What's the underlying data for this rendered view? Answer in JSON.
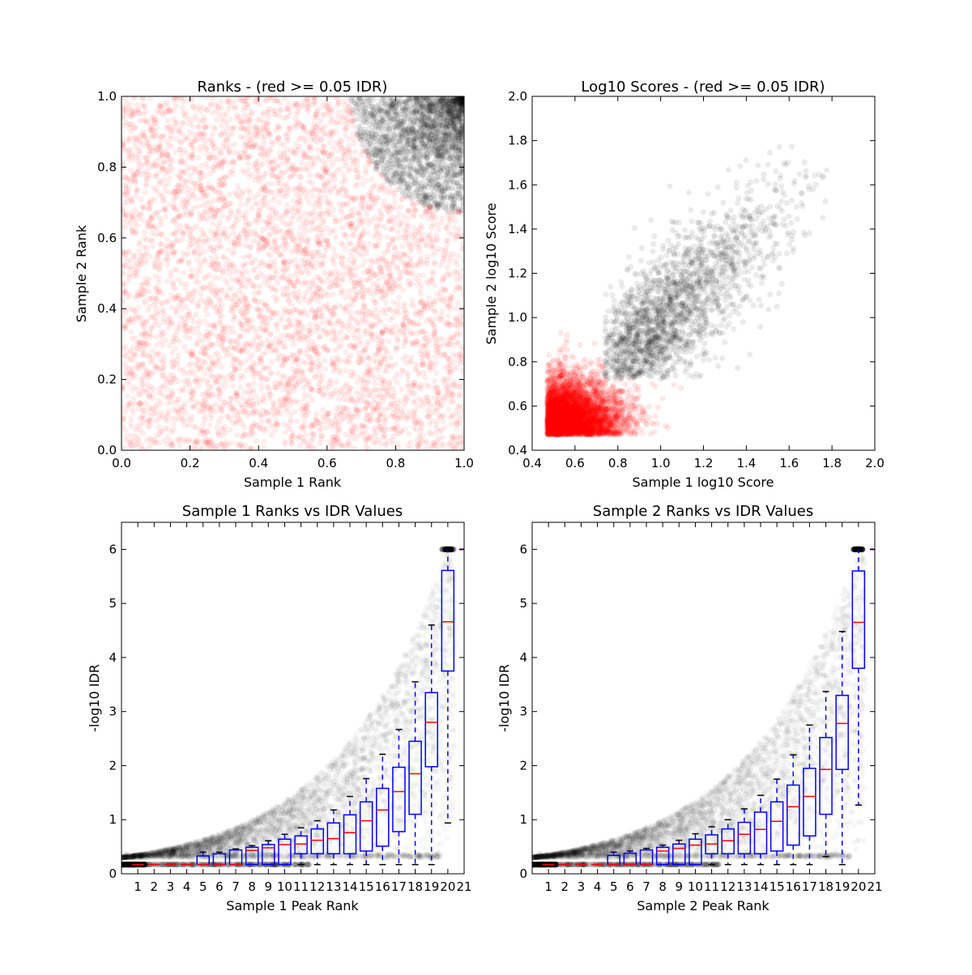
{
  "chart_data": [
    {
      "type": "scatter",
      "title": "Ranks - (red >= 0.05 IDR)",
      "xlabel": "Sample 1 Rank",
      "ylabel": "Sample 2 Rank",
      "xlim": [
        0.0,
        1.0
      ],
      "ylim": [
        0.0,
        1.0
      ],
      "xticks": [
        "0.0",
        "0.2",
        "0.4",
        "0.6",
        "0.8",
        "1.0"
      ],
      "yticks": [
        "0.0",
        "0.2",
        "0.4",
        "0.6",
        "0.8",
        "1.0"
      ],
      "colors": {
        "above_threshold": "#ff0000",
        "below_threshold": "#000000"
      }
    },
    {
      "type": "scatter",
      "title": "Log10 Scores - (red >= 0.05 IDR)",
      "xlabel": "Sample 1 log10 Score",
      "ylabel": "Sample 2 log10 Score",
      "xlim": [
        0.4,
        2.0
      ],
      "ylim": [
        0.4,
        2.0
      ],
      "xticks": [
        "0.4",
        "0.6",
        "0.8",
        "1.0",
        "1.2",
        "1.4",
        "1.6",
        "1.8",
        "2.0"
      ],
      "yticks": [
        "0.4",
        "0.6",
        "0.8",
        "1.0",
        "1.2",
        "1.4",
        "1.6",
        "1.8",
        "2.0"
      ],
      "colors": {
        "above_threshold": "#ff0000",
        "below_threshold": "#000000"
      }
    },
    {
      "type": "box",
      "title": "Sample 1 Ranks vs IDR Values",
      "xlabel": "Sample 1 Peak Rank",
      "ylabel": "-log10 IDR",
      "xlim": [
        0,
        21
      ],
      "ylim": [
        0,
        6.5
      ],
      "xticks": [
        "1",
        "2",
        "3",
        "4",
        "5",
        "6",
        "7",
        "8",
        "9",
        "10",
        "11",
        "12",
        "13",
        "14",
        "15",
        "16",
        "17",
        "18",
        "19",
        "20",
        "21"
      ],
      "yticks": [
        "0",
        "1",
        "2",
        "3",
        "4",
        "5",
        "6"
      ],
      "boxes": [
        {
          "pos": 1,
          "low": 0.17,
          "q1": 0.17,
          "med": 0.17,
          "q3": 0.17,
          "high": 0.17
        },
        {
          "pos": 2,
          "low": 0.17,
          "q1": 0.17,
          "med": 0.17,
          "q3": 0.17,
          "high": 0.17
        },
        {
          "pos": 3,
          "low": 0.17,
          "q1": 0.17,
          "med": 0.17,
          "q3": 0.17,
          "high": 0.17
        },
        {
          "pos": 4,
          "low": 0.17,
          "q1": 0.17,
          "med": 0.17,
          "q3": 0.17,
          "high": 0.17
        },
        {
          "pos": 5,
          "low": 0.17,
          "q1": 0.17,
          "med": 0.17,
          "q3": 0.33,
          "high": 0.4
        },
        {
          "pos": 6,
          "low": 0.17,
          "q1": 0.17,
          "med": 0.17,
          "q3": 0.37,
          "high": 0.4
        },
        {
          "pos": 7,
          "low": 0.17,
          "q1": 0.17,
          "med": 0.17,
          "q3": 0.44,
          "high": 0.46
        },
        {
          "pos": 8,
          "low": 0.17,
          "q1": 0.17,
          "med": 0.43,
          "q3": 0.49,
          "high": 0.52
        },
        {
          "pos": 9,
          "low": 0.17,
          "q1": 0.17,
          "med": 0.48,
          "q3": 0.54,
          "high": 0.61
        },
        {
          "pos": 10,
          "low": 0.17,
          "q1": 0.17,
          "med": 0.54,
          "q3": 0.64,
          "high": 0.73
        },
        {
          "pos": 11,
          "low": 0.17,
          "q1": 0.37,
          "med": 0.55,
          "q3": 0.7,
          "high": 0.85
        },
        {
          "pos": 12,
          "low": 0.17,
          "q1": 0.37,
          "med": 0.62,
          "q3": 0.83,
          "high": 0.98
        },
        {
          "pos": 13,
          "low": 0.17,
          "q1": 0.37,
          "med": 0.65,
          "q3": 0.94,
          "high": 1.18
        },
        {
          "pos": 14,
          "low": 0.17,
          "q1": 0.37,
          "med": 0.76,
          "q3": 1.09,
          "high": 1.43
        },
        {
          "pos": 15,
          "low": 0.17,
          "q1": 0.42,
          "med": 0.98,
          "q3": 1.33,
          "high": 1.76
        },
        {
          "pos": 16,
          "low": 0.17,
          "q1": 0.51,
          "med": 1.18,
          "q3": 1.58,
          "high": 2.21
        },
        {
          "pos": 17,
          "low": 0.17,
          "q1": 0.78,
          "med": 1.52,
          "q3": 1.97,
          "high": 2.67
        },
        {
          "pos": 18,
          "low": 0.17,
          "q1": 1.1,
          "med": 1.85,
          "q3": 2.45,
          "high": 3.55
        },
        {
          "pos": 19,
          "low": 0.17,
          "q1": 1.98,
          "med": 2.8,
          "q3": 3.35,
          "high": 4.6
        },
        {
          "pos": 20,
          "low": 0.94,
          "q1": 3.75,
          "med": 4.66,
          "q3": 5.61,
          "high": 6.0
        }
      ],
      "colors": {
        "box": "#0000ff",
        "median": "#ff0000",
        "cap": "#000000",
        "points": "#000000"
      }
    },
    {
      "type": "box",
      "title": "Sample 2 Ranks vs IDR Values",
      "xlabel": "Sample 2 Peak Rank",
      "ylabel": "-log10 IDR",
      "xlim": [
        0,
        21
      ],
      "ylim": [
        0,
        6.5
      ],
      "xticks": [
        "1",
        "2",
        "3",
        "4",
        "5",
        "6",
        "7",
        "8",
        "9",
        "10",
        "11",
        "12",
        "13",
        "14",
        "15",
        "16",
        "17",
        "18",
        "19",
        "20",
        "21"
      ],
      "yticks": [
        "0",
        "1",
        "2",
        "3",
        "4",
        "5",
        "6"
      ],
      "boxes": [
        {
          "pos": 1,
          "low": 0.17,
          "q1": 0.17,
          "med": 0.17,
          "q3": 0.17,
          "high": 0.17
        },
        {
          "pos": 2,
          "low": 0.17,
          "q1": 0.17,
          "med": 0.17,
          "q3": 0.17,
          "high": 0.17
        },
        {
          "pos": 3,
          "low": 0.17,
          "q1": 0.17,
          "med": 0.17,
          "q3": 0.17,
          "high": 0.17
        },
        {
          "pos": 4,
          "low": 0.17,
          "q1": 0.17,
          "med": 0.17,
          "q3": 0.17,
          "high": 0.17
        },
        {
          "pos": 5,
          "low": 0.17,
          "q1": 0.17,
          "med": 0.17,
          "q3": 0.34,
          "high": 0.4
        },
        {
          "pos": 6,
          "low": 0.17,
          "q1": 0.17,
          "med": 0.17,
          "q3": 0.38,
          "high": 0.42
        },
        {
          "pos": 7,
          "low": 0.17,
          "q1": 0.17,
          "med": 0.17,
          "q3": 0.44,
          "high": 0.47
        },
        {
          "pos": 8,
          "low": 0.17,
          "q1": 0.17,
          "med": 0.42,
          "q3": 0.49,
          "high": 0.53
        },
        {
          "pos": 9,
          "low": 0.17,
          "q1": 0.17,
          "med": 0.47,
          "q3": 0.55,
          "high": 0.62
        },
        {
          "pos": 10,
          "low": 0.17,
          "q1": 0.17,
          "med": 0.53,
          "q3": 0.64,
          "high": 0.74
        },
        {
          "pos": 11,
          "low": 0.17,
          "q1": 0.37,
          "med": 0.55,
          "q3": 0.72,
          "high": 0.87
        },
        {
          "pos": 12,
          "low": 0.17,
          "q1": 0.37,
          "med": 0.61,
          "q3": 0.83,
          "high": 1.0
        },
        {
          "pos": 13,
          "low": 0.17,
          "q1": 0.37,
          "med": 0.73,
          "q3": 0.95,
          "high": 1.2
        },
        {
          "pos": 14,
          "low": 0.17,
          "q1": 0.37,
          "med": 0.82,
          "q3": 1.14,
          "high": 1.45
        },
        {
          "pos": 15,
          "low": 0.17,
          "q1": 0.42,
          "med": 0.97,
          "q3": 1.33,
          "high": 1.75
        },
        {
          "pos": 16,
          "low": 0.17,
          "q1": 0.53,
          "med": 1.24,
          "q3": 1.64,
          "high": 2.2
        },
        {
          "pos": 17,
          "low": 0.17,
          "q1": 0.7,
          "med": 1.43,
          "q3": 1.95,
          "high": 2.75
        },
        {
          "pos": 18,
          "low": 0.32,
          "q1": 1.1,
          "med": 1.93,
          "q3": 2.52,
          "high": 3.37
        },
        {
          "pos": 19,
          "low": 0.17,
          "q1": 1.93,
          "med": 2.78,
          "q3": 3.3,
          "high": 4.48
        },
        {
          "pos": 20,
          "low": 1.27,
          "q1": 3.8,
          "med": 4.65,
          "q3": 5.6,
          "high": 6.0
        }
      ],
      "colors": {
        "box": "#0000ff",
        "median": "#ff0000",
        "cap": "#000000",
        "points": "#000000"
      }
    }
  ]
}
